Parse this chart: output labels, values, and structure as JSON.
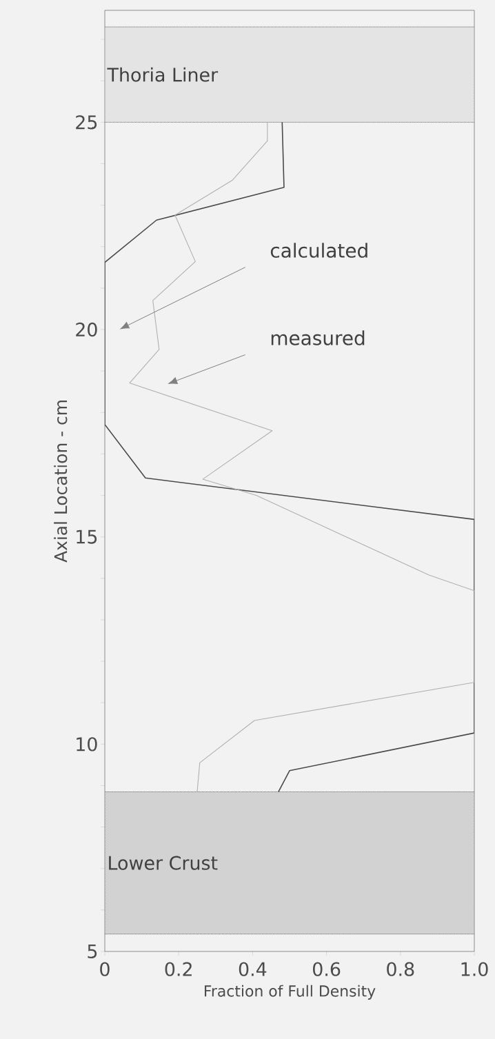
{
  "chart_data": {
    "type": "line",
    "xlabel": "Fraction of Full Density",
    "ylabel": "Axial Location - cm",
    "xlim": [
      0,
      1
    ],
    "ylim": [
      5,
      27.7
    ],
    "xticks": [
      0,
      0.2,
      0.4,
      0.6,
      0.8,
      {
        "value": 1,
        "label": "1.0"
      }
    ],
    "yticks": [
      5,
      {
        "value": 6,
        "label": null
      },
      {
        "value": 7,
        "label": null
      },
      {
        "value": 8,
        "label": null
      },
      {
        "value": 9,
        "label": null
      },
      10,
      {
        "value": 11,
        "label": null
      },
      {
        "value": 12,
        "label": null
      },
      {
        "value": 13,
        "label": null
      },
      {
        "value": 14,
        "label": null
      },
      15,
      {
        "value": 16,
        "label": null
      },
      {
        "value": 17,
        "label": null
      },
      {
        "value": 18,
        "label": null
      },
      {
        "value": 19,
        "label": null
      },
      20,
      {
        "value": 21,
        "label": null
      },
      {
        "value": 22,
        "label": null
      },
      {
        "value": 23,
        "label": null
      },
      {
        "value": 24,
        "label": null
      },
      25,
      {
        "value": 26,
        "label": null
      },
      {
        "value": 27,
        "label": null
      }
    ],
    "marker": "none",
    "line_style": "solid",
    "series": [
      {
        "color": "#4a4a4a",
        "x": [
          0.48,
          0.485,
          0.14,
          0,
          0,
          0.11,
          1,
          1,
          0.5,
          0.47
        ],
        "values": [
          25,
          23.43,
          22.64,
          21.62,
          17.71,
          16.42,
          15.42,
          10.27,
          9.36,
          8.85
        ]
      },
      {
        "color": "#b0b0b0",
        "x": [
          0.44,
          0.44,
          0.345,
          0.19,
          0.245,
          0.13,
          0.147,
          0.067,
          0.453,
          0.265,
          0.41,
          0.877,
          1,
          1,
          0.405,
          0.257,
          0.25
        ],
        "values": [
          25,
          24.55,
          23.6,
          22.76,
          21.64,
          20.7,
          19.52,
          18.71,
          17.56,
          16.39,
          16.0,
          14.08,
          13.7,
          11.49,
          10.57,
          9.55,
          8.85
        ]
      }
    ],
    "bands": [
      {
        "axis": "y",
        "from": 25,
        "to": 27.3,
        "label": "Thoria Liner",
        "color": "#e4e4e4"
      },
      {
        "axis": "y",
        "from": 5.42,
        "to": 8.85,
        "label": "Lower Crust",
        "color": "#d2d2d2"
      }
    ],
    "annotations": [
      "calculated",
      "measured"
    ]
  }
}
